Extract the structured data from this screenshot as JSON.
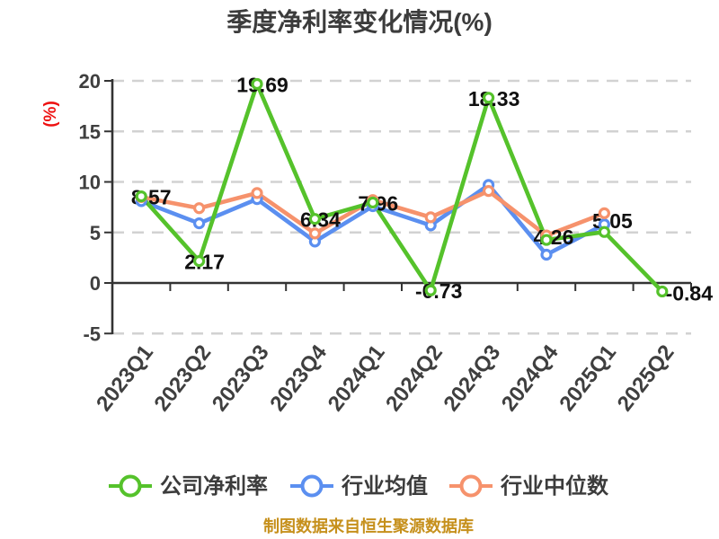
{
  "chart_data": {
    "type": "line",
    "title": "季度净利率变化情况(%)",
    "ylabel": "(%)",
    "footnote": "制图数据来自恒生聚源数据库",
    "categories": [
      "2023Q1",
      "2023Q2",
      "2023Q3",
      "2023Q4",
      "2024Q1",
      "2024Q2",
      "2024Q3",
      "2024Q4",
      "2025Q1",
      "2025Q2"
    ],
    "yticks": [
      20,
      15,
      10,
      5,
      0,
      -5
    ],
    "ylim": [
      -5,
      20
    ],
    "grid": "dashed horizontal",
    "legend_position": "bottom",
    "series": [
      {
        "name": "公司净利率",
        "color": "#55c22b",
        "values": [
          8.57,
          2.17,
          19.69,
          6.34,
          7.96,
          -0.73,
          18.33,
          4.26,
          5.05,
          -0.84
        ],
        "point_labels": [
          "8.57",
          "2.17",
          "19.69",
          "6.34",
          "7.96",
          "-0.73",
          "18.33",
          "4.26",
          "5.05",
          "-0.84"
        ]
      },
      {
        "name": "行业均值",
        "color": "#5b8ff0",
        "values": [
          8.1,
          5.9,
          8.3,
          4.1,
          7.6,
          5.7,
          9.7,
          2.8,
          5.8,
          null
        ],
        "point_labels": []
      },
      {
        "name": "行业中位数",
        "color": "#f6926c",
        "values": [
          8.5,
          7.4,
          8.9,
          4.9,
          8.2,
          6.5,
          9.1,
          4.7,
          6.9,
          null
        ],
        "point_labels": []
      }
    ],
    "colors": {
      "title_text": "#3c3c3c",
      "axis": "#333333",
      "tick_label": "#3f3f3f",
      "grid_line": "#d2d2d2",
      "data_label": "#101010",
      "y_unit_label": "#ee1111",
      "footnote_text": "#c6901c",
      "marker_fill": "#ffffff"
    }
  }
}
